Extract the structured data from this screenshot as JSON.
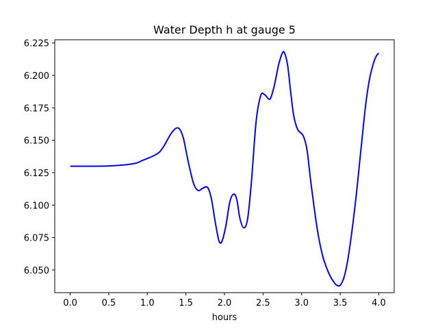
{
  "chart_data": {
    "type": "line",
    "title": "Water Depth h at gauge 5",
    "xlabel": "hours",
    "ylabel": "",
    "xlim": [
      -0.2,
      4.2
    ],
    "ylim": [
      6.0325,
      6.2275
    ],
    "xticks": [
      0.0,
      0.5,
      1.0,
      1.5,
      2.0,
      2.5,
      3.0,
      3.5,
      4.0
    ],
    "xtick_labels": [
      "0.0",
      "0.5",
      "1.0",
      "1.5",
      "2.0",
      "2.5",
      "3.0",
      "3.5",
      "4.0"
    ],
    "yticks": [
      6.05,
      6.075,
      6.1,
      6.125,
      6.15,
      6.175,
      6.2,
      6.225
    ],
    "ytick_labels": [
      "6.050",
      "6.075",
      "6.100",
      "6.125",
      "6.150",
      "6.175",
      "6.200",
      "6.225"
    ],
    "grid": false,
    "series": [
      {
        "color": "#0000ff",
        "x": [
          0.0,
          0.25,
          0.5,
          0.7,
          0.85,
          0.95,
          1.05,
          1.15,
          1.22,
          1.3,
          1.37,
          1.42,
          1.47,
          1.53,
          1.6,
          1.66,
          1.71,
          1.78,
          1.83,
          1.88,
          1.93,
          1.97,
          2.02,
          2.07,
          2.12,
          2.16,
          2.2,
          2.25,
          2.3,
          2.35,
          2.41,
          2.47,
          2.52,
          2.57,
          2.6,
          2.65,
          2.7,
          2.75,
          2.78,
          2.82,
          2.86,
          2.9,
          2.95,
          3.02,
          3.07,
          3.12,
          3.2,
          3.27,
          3.35,
          3.42,
          3.47,
          3.51,
          3.56,
          3.62,
          3.7,
          3.77,
          3.83,
          3.88,
          3.93,
          3.97,
          4.0
        ],
        "y": [
          6.13,
          6.13,
          6.1302,
          6.131,
          6.1323,
          6.1348,
          6.1372,
          6.1405,
          6.146,
          6.1545,
          6.1592,
          6.1585,
          6.151,
          6.1335,
          6.1165,
          6.1112,
          6.1127,
          6.1137,
          6.105,
          6.087,
          6.0722,
          6.0725,
          6.0847,
          6.1027,
          6.1085,
          6.1042,
          6.0898,
          6.0825,
          6.0895,
          6.1185,
          6.1645,
          6.1845,
          6.1852,
          6.182,
          6.1827,
          6.1932,
          6.2078,
          6.2172,
          6.2172,
          6.2072,
          6.1862,
          6.1682,
          6.1582,
          6.1535,
          6.1425,
          6.1175,
          6.0825,
          6.0615,
          6.0478,
          6.0405,
          6.0378,
          6.039,
          6.0465,
          6.066,
          6.1035,
          6.1435,
          6.1772,
          6.1972,
          6.2092,
          6.2152,
          6.2172
        ]
      }
    ]
  }
}
